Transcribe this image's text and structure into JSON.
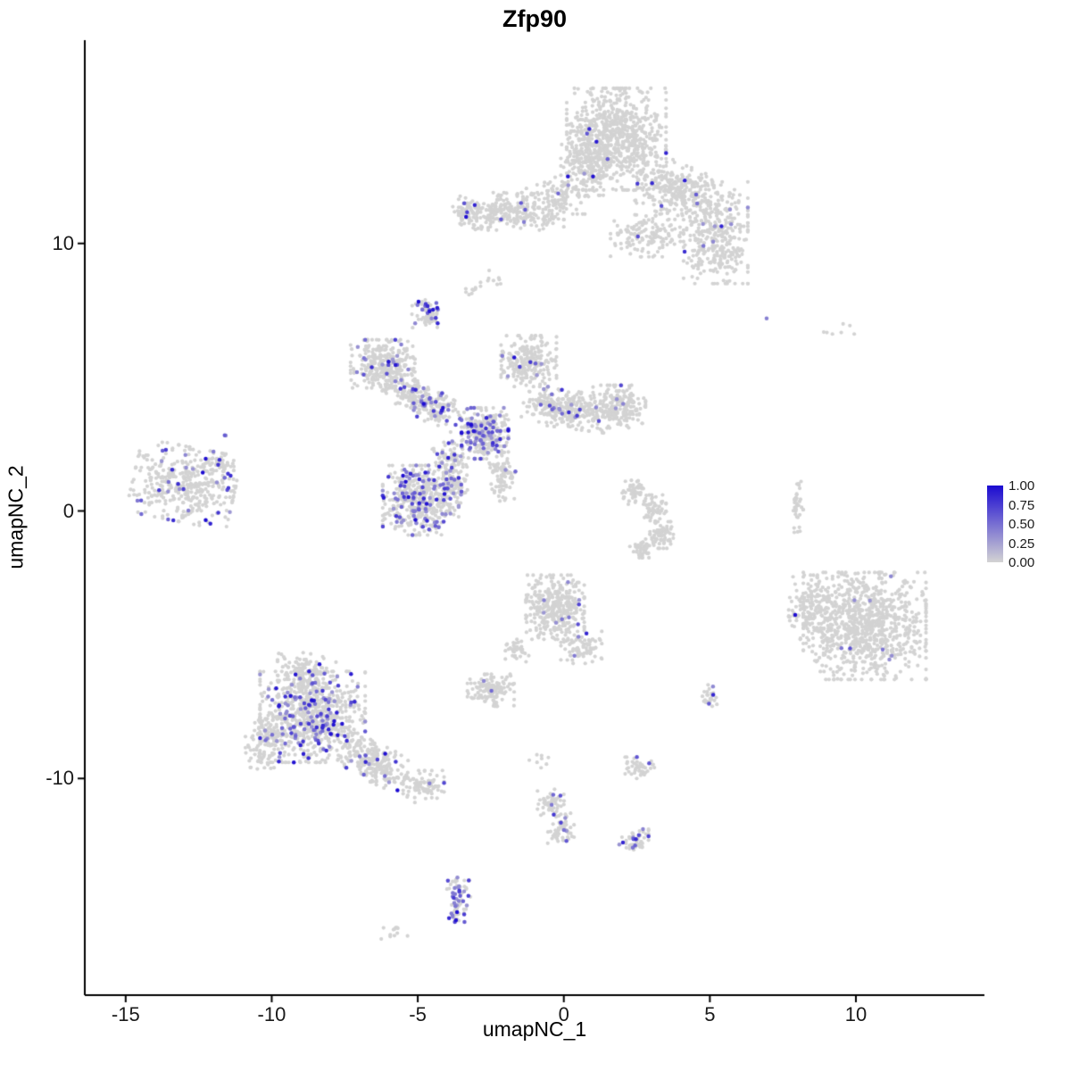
{
  "title": "Zfp90",
  "axes": {
    "xlabel": "umapNC_1",
    "ylabel": "umapNC_2",
    "x_tick_labels": [
      "-15",
      "-10",
      "-5",
      "0",
      "5",
      "10"
    ],
    "x_tick_values": [
      -15,
      -10,
      -5,
      0,
      5,
      10
    ],
    "y_tick_labels": [
      "-10",
      "0",
      "10"
    ],
    "y_tick_values": [
      -10,
      0,
      10
    ],
    "x_range": [
      -16.4,
      14.4
    ],
    "y_range": [
      -18.1,
      17.6
    ]
  },
  "legend": {
    "labels": [
      "1.00",
      "0.75",
      "0.50",
      "0.25",
      "0.00"
    ],
    "values": [
      1,
      0.75,
      0.5,
      0.25,
      0
    ],
    "color_high": "#1B0AD1",
    "color_low": "#D3D3D3"
  },
  "chart_data": {
    "type": "scatter",
    "title": "Zfp90",
    "xlabel": "umapNC_1",
    "ylabel": "umapNC_2",
    "x_range": [
      -16.4,
      14.4
    ],
    "y_range": [
      -18.1,
      17.6
    ],
    "grid": false,
    "legend_position": "right",
    "color_scale": {
      "low": "#D3D3D3",
      "high": "#1B0AD1",
      "domain": [
        0,
        1
      ]
    },
    "point_radius": 2.1,
    "seed": 42,
    "clusters": [
      {
        "name": "top-core",
        "cx": 1.8,
        "cy": 13.9,
        "hwx": 1.7,
        "hwy": 1.9,
        "rot": 0,
        "n": 750,
        "expr_frac": 0.02
      },
      {
        "name": "top-left-lobe",
        "cx": 0.7,
        "cy": 13.0,
        "hwx": 0.8,
        "hwy": 1.2,
        "rot": 0,
        "n": 180,
        "expr_frac": 0.01
      },
      {
        "name": "top-right-arm",
        "cx": 3.8,
        "cy": 12.0,
        "hwx": 1.3,
        "hwy": 1.0,
        "rot": -25,
        "n": 280,
        "expr_frac": 0.01
      },
      {
        "name": "top-right-lobe",
        "cx": 5.2,
        "cy": 10.4,
        "hwx": 1.1,
        "hwy": 1.9,
        "rot": 0,
        "n": 380,
        "expr_frac": 0.02
      },
      {
        "name": "top-bottom-tail",
        "cx": 2.8,
        "cy": 10.3,
        "hwx": 1.2,
        "hwy": 0.8,
        "rot": 0,
        "n": 140,
        "expr_frac": 0.01
      },
      {
        "name": "top-bridge",
        "cx": -0.2,
        "cy": 11.8,
        "hwx": 1.2,
        "hwy": 0.7,
        "rot": 0,
        "n": 90,
        "expr_frac": 0.02
      },
      {
        "name": "upperleft-band",
        "cx": -1.8,
        "cy": 11.2,
        "hwx": 1.8,
        "hwy": 0.7,
        "rot": 0,
        "n": 280,
        "expr_frac": 0.02
      },
      {
        "name": "upperleft-tip",
        "cx": -3.3,
        "cy": 11.2,
        "hwx": 0.5,
        "hwy": 0.5,
        "rot": 0,
        "n": 50,
        "expr_frac": 0.06
      },
      {
        "name": "small-knot",
        "cx": -4.7,
        "cy": 7.4,
        "hwx": 0.5,
        "hwy": 0.55,
        "rot": 0,
        "n": 70,
        "expr_frac": 0.3
      },
      {
        "name": "stray-pair",
        "cx": -3.2,
        "cy": 8.3,
        "hwx": 0.35,
        "hwy": 0.3,
        "rot": 0,
        "n": 10,
        "expr_frac": 0
      },
      {
        "name": "mid-left-lobe",
        "cx": -6.2,
        "cy": 5.5,
        "hwx": 1.1,
        "hwy": 0.9,
        "rot": 0,
        "n": 300,
        "expr_frac": 0.06
      },
      {
        "name": "mid-diag-arm",
        "cx": -4.8,
        "cy": 4.1,
        "hwx": 1.4,
        "hwy": 0.6,
        "rot": -33,
        "n": 260,
        "expr_frac": 0.12
      },
      {
        "name": "mid-node",
        "cx": -2.7,
        "cy": 2.9,
        "hwx": 0.8,
        "hwy": 0.95,
        "rot": 0,
        "n": 320,
        "expr_frac": 0.25
      },
      {
        "name": "mid-upper-blob",
        "cx": -1.2,
        "cy": 5.6,
        "hwx": 0.95,
        "hwy": 0.95,
        "rot": 0,
        "n": 230,
        "expr_frac": 0.04
      },
      {
        "name": "mid-right-arm",
        "cx": 0.1,
        "cy": 3.8,
        "hwx": 1.5,
        "hwy": 0.7,
        "rot": -8,
        "n": 300,
        "expr_frac": 0.05
      },
      {
        "name": "mid-right-end",
        "cx": 1.9,
        "cy": 3.9,
        "hwx": 0.9,
        "hwy": 0.8,
        "rot": 0,
        "n": 200,
        "expr_frac": 0.02
      },
      {
        "name": "mid-tail",
        "cx": -2.1,
        "cy": 1.4,
        "hwx": 0.45,
        "hwy": 1.0,
        "rot": 10,
        "n": 90,
        "expr_frac": 0.08
      },
      {
        "name": "mid-bridge",
        "cx": -3.9,
        "cy": 1.9,
        "hwx": 0.6,
        "hwy": 0.7,
        "rot": 0,
        "n": 80,
        "expr_frac": 0.1
      },
      {
        "name": "lower-mid-core",
        "cx": -4.9,
        "cy": 0.4,
        "hwx": 1.3,
        "hwy": 1.3,
        "rot": 0,
        "n": 480,
        "expr_frac": 0.2
      },
      {
        "name": "lower-mid-edge",
        "cx": -3.8,
        "cy": 0.9,
        "hwx": 0.5,
        "hwy": 0.6,
        "rot": 0,
        "n": 70,
        "expr_frac": 0.1
      },
      {
        "name": "far-left-core",
        "cx": -13.0,
        "cy": 1.0,
        "hwx": 1.75,
        "hwy": 1.4,
        "rot": -12,
        "n": 400,
        "expr_frac": 0.09
      },
      {
        "name": "far-left-tip",
        "cx": -11.8,
        "cy": 1.8,
        "hwx": 0.5,
        "hwy": 0.4,
        "rot": 0,
        "n": 40,
        "expr_frac": 0.1
      },
      {
        "name": "far-left-stray",
        "cx": -11.6,
        "cy": 2.75,
        "hwx": 0.12,
        "hwy": 0.1,
        "rot": 0,
        "n": 2,
        "expr_frac": 0.5
      },
      {
        "name": "crescent-a",
        "cx": 2.4,
        "cy": 0.7,
        "hwx": 0.4,
        "hwy": 0.45,
        "rot": 0,
        "n": 55,
        "expr_frac": 0
      },
      {
        "name": "crescent-b",
        "cx": 3.1,
        "cy": 0.1,
        "hwx": 0.4,
        "hwy": 0.5,
        "rot": 0,
        "n": 55,
        "expr_frac": 0
      },
      {
        "name": "crescent-c",
        "cx": 3.35,
        "cy": -0.9,
        "hwx": 0.4,
        "hwy": 0.5,
        "rot": 0,
        "n": 75,
        "expr_frac": 0
      },
      {
        "name": "crescent-d",
        "cx": 2.7,
        "cy": -1.4,
        "hwx": 0.45,
        "hwy": 0.35,
        "rot": 0,
        "n": 50,
        "expr_frac": 0
      },
      {
        "name": "right-core",
        "cx": 10.3,
        "cy": -4.3,
        "hwx": 2.1,
        "hwy": 2.0,
        "rot": 0,
        "n": 900,
        "expr_frac": 0.012
      },
      {
        "name": "right-left-arm",
        "cx": 8.5,
        "cy": -3.6,
        "hwx": 0.8,
        "hwy": 1.2,
        "rot": 0,
        "n": 140,
        "expr_frac": 0.02
      },
      {
        "name": "right-strip",
        "cx": 8.0,
        "cy": 0.2,
        "hwx": 0.2,
        "hwy": 1.0,
        "rot": 0,
        "n": 35,
        "expr_frac": 0
      },
      {
        "name": "center-core",
        "cx": -0.3,
        "cy": -3.6,
        "hwx": 1.0,
        "hwy": 1.2,
        "rot": 0,
        "n": 340,
        "expr_frac": 0.03
      },
      {
        "name": "center-tail",
        "cx": 0.6,
        "cy": -5.1,
        "hwx": 0.7,
        "hwy": 0.6,
        "rot": 0,
        "n": 80,
        "expr_frac": 0.05
      },
      {
        "name": "center-below",
        "cx": -1.6,
        "cy": -5.3,
        "hwx": 0.4,
        "hwy": 0.5,
        "rot": 0,
        "n": 35,
        "expr_frac": 0
      },
      {
        "name": "center-small-blob",
        "cx": -2.5,
        "cy": -6.7,
        "hwx": 0.8,
        "hwy": 0.6,
        "rot": 0,
        "n": 130,
        "expr_frac": 0.02
      },
      {
        "name": "lowerleft-core",
        "cx": -8.6,
        "cy": -7.7,
        "hwx": 1.8,
        "hwy": 1.7,
        "rot": 0,
        "n": 750,
        "expr_frac": 0.15
      },
      {
        "name": "lowerleft-top",
        "cx": -8.8,
        "cy": -6.0,
        "hwx": 1.0,
        "hwy": 0.7,
        "rot": 0,
        "n": 140,
        "expr_frac": 0.06
      },
      {
        "name": "lowerleft-left",
        "cx": -10.2,
        "cy": -8.7,
        "hwx": 0.7,
        "hwy": 1.0,
        "rot": 0,
        "n": 110,
        "expr_frac": 0.04
      },
      {
        "name": "lowerleft-arm",
        "cx": -6.5,
        "cy": -9.4,
        "hwx": 1.2,
        "hwy": 0.7,
        "rot": -28,
        "n": 240,
        "expr_frac": 0.06
      },
      {
        "name": "lowerleft-arm-end",
        "cx": -4.8,
        "cy": -10.3,
        "hwx": 0.7,
        "hwy": 0.6,
        "rot": 0,
        "n": 90,
        "expr_frac": 0.04
      },
      {
        "name": "bottom-tail-a",
        "cx": -0.4,
        "cy": -10.9,
        "hwx": 0.5,
        "hwy": 0.5,
        "rot": 0,
        "n": 50,
        "expr_frac": 0.02
      },
      {
        "name": "bottom-tail-b",
        "cx": -0.1,
        "cy": -11.9,
        "hwx": 0.45,
        "hwy": 0.6,
        "rot": 0,
        "n": 60,
        "expr_frac": 0.15
      },
      {
        "name": "bottom-small",
        "cx": 2.4,
        "cy": -12.3,
        "hwx": 0.5,
        "hwy": 0.45,
        "rot": 0,
        "n": 55,
        "expr_frac": 0.08
      },
      {
        "name": "bottom-purple-blob",
        "cx": -3.6,
        "cy": -14.3,
        "hwx": 0.4,
        "hwy": 0.7,
        "rot": 0,
        "n": 55,
        "expr_frac": 0.4
      },
      {
        "name": "bottom-purple-tip",
        "cx": -3.7,
        "cy": -15.2,
        "hwx": 0.3,
        "hwy": 0.25,
        "rot": 0,
        "n": 16,
        "expr_frac": 0.3
      },
      {
        "name": "bottom-left-tiny",
        "cx": -5.8,
        "cy": -15.7,
        "hwx": 0.45,
        "hwy": 0.3,
        "rot": 0,
        "n": 12,
        "expr_frac": 0
      },
      {
        "name": "single-high-expresser",
        "cx": 6.9,
        "cy": 7.2,
        "hwx": 0.05,
        "hwy": 0.05,
        "rot": 0,
        "n": 1,
        "expr_frac": 1
      },
      {
        "name": "top-right-strays",
        "cx": 9.3,
        "cy": 6.8,
        "hwx": 0.8,
        "hwy": 0.3,
        "rot": 0,
        "n": 7,
        "expr_frac": 0
      },
      {
        "name": "small-right-mid",
        "cx": 5.0,
        "cy": -6.9,
        "hwx": 0.3,
        "hwy": 0.4,
        "rot": 0,
        "n": 26,
        "expr_frac": 0.15
      },
      {
        "name": "small-center-low",
        "cx": 2.6,
        "cy": -9.6,
        "hwx": 0.5,
        "hwy": 0.4,
        "rot": 0,
        "n": 45,
        "expr_frac": 0.04
      },
      {
        "name": "stray-mid-high",
        "cx": -2.3,
        "cy": 8.7,
        "hwx": 0.35,
        "hwy": 0.3,
        "rot": 0,
        "n": 8,
        "expr_frac": 0
      },
      {
        "name": "stray-below-center",
        "cx": -0.8,
        "cy": -9.3,
        "hwx": 0.4,
        "hwy": 0.3,
        "rot": 0,
        "n": 8,
        "expr_frac": 0
      }
    ]
  }
}
